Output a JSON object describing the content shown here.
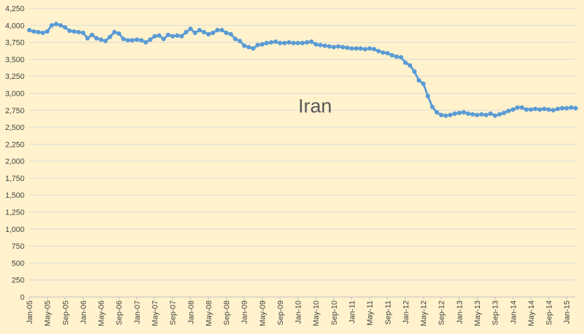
{
  "chart_data": {
    "type": "line",
    "title": "Iran",
    "xlabel": "",
    "ylabel": "",
    "ylim": [
      0,
      4250
    ],
    "yticks": [
      "0",
      "250",
      "500",
      "750",
      "1,000",
      "1,250",
      "1,500",
      "1,750",
      "2,000",
      "2,250",
      "2,500",
      "2,750",
      "3,000",
      "3,250",
      "3,500",
      "3,750",
      "4,000",
      "4,250"
    ],
    "xtick_labels": [
      "Jan-05",
      "May-05",
      "Sep-05",
      "Jan-06",
      "May-06",
      "Sep-06",
      "Jan-07",
      "May-07",
      "Sep-07",
      "Jan-08",
      "May-08",
      "Sep-08",
      "Jan-09",
      "May-09",
      "Sep-09",
      "Jan-10",
      "May-10",
      "Sep-10",
      "Jan-11",
      "May-11",
      "Sep-11",
      "Jan-12",
      "May-12",
      "Sep-12",
      "Jan-13",
      "May-13",
      "Sep-13",
      "Jan-14",
      "May-14",
      "Sep-14",
      "Jan-15"
    ],
    "grid": true,
    "legend": "none",
    "colors": {
      "background": "#fff2cc",
      "grid": "#d9d9d9",
      "line": "#5b9bd5"
    },
    "series": [
      {
        "start": "Jan-05",
        "frequency": "monthly",
        "values": [
          3930,
          3910,
          3900,
          3890,
          3910,
          4000,
          4020,
          4000,
          3970,
          3920,
          3910,
          3900,
          3890,
          3810,
          3860,
          3810,
          3790,
          3770,
          3830,
          3900,
          3880,
          3800,
          3780,
          3780,
          3790,
          3780,
          3750,
          3790,
          3840,
          3850,
          3800,
          3860,
          3840,
          3850,
          3840,
          3900,
          3950,
          3890,
          3930,
          3900,
          3870,
          3890,
          3930,
          3930,
          3890,
          3870,
          3800,
          3770,
          3700,
          3680,
          3660,
          3710,
          3720,
          3740,
          3750,
          3760,
          3740,
          3740,
          3750,
          3740,
          3740,
          3740,
          3750,
          3760,
          3720,
          3710,
          3700,
          3690,
          3680,
          3690,
          3680,
          3670,
          3660,
          3660,
          3660,
          3650,
          3660,
          3650,
          3620,
          3600,
          3590,
          3560,
          3540,
          3530,
          3450,
          3410,
          3320,
          3190,
          3140,
          2960,
          2800,
          2720,
          2680,
          2670,
          2680,
          2700,
          2710,
          2720,
          2700,
          2690,
          2680,
          2690,
          2680,
          2700,
          2670,
          2690,
          2710,
          2740,
          2760,
          2790,
          2790,
          2760,
          2760,
          2770,
          2760,
          2770,
          2760,
          2750,
          2770,
          2780,
          2780,
          2790,
          2780
        ]
      }
    ]
  }
}
